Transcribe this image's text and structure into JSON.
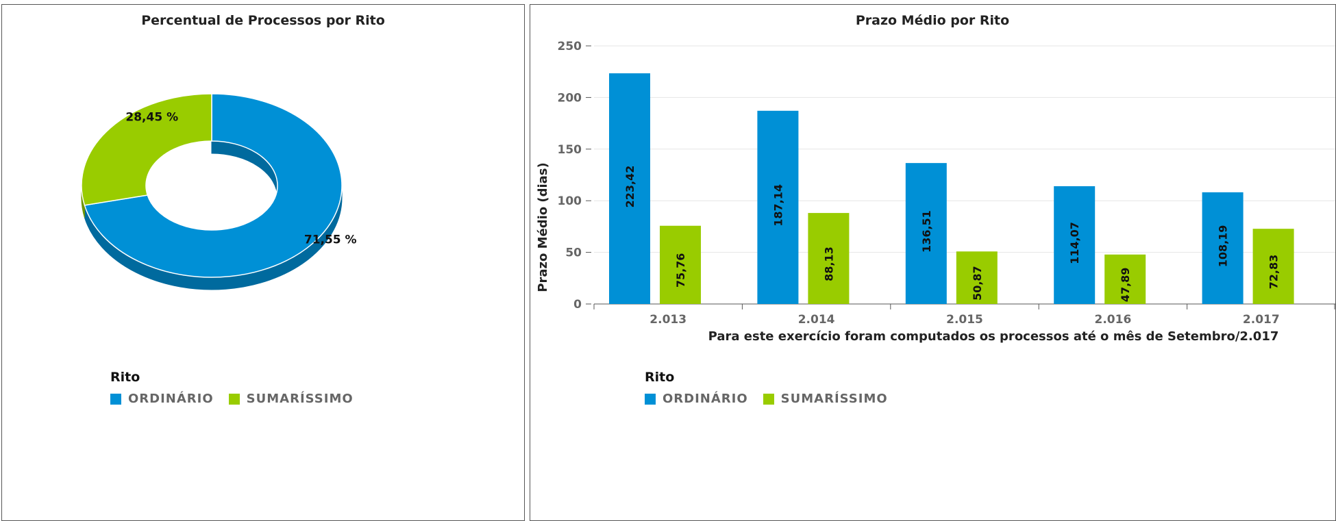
{
  "colors": {
    "ordinario": "#0090d6",
    "sumarissimo": "#99cc00",
    "ordinario_dark": "#006a9e",
    "sumarissimo_dark": "#6e9400"
  },
  "legend": {
    "title": "Rito",
    "items": [
      "ORDINÁRIO",
      "SUMARÍSSIMO"
    ]
  },
  "chart_data": [
    {
      "type": "pie",
      "title": "Percentual de Processos por Rito",
      "slices": [
        {
          "name": "ORDINÁRIO",
          "value": 71.55,
          "label": "71,55 %"
        },
        {
          "name": "SUMARÍSSIMO",
          "value": 28.45,
          "label": "28,45 %"
        }
      ]
    },
    {
      "type": "bar",
      "title": "Prazo Médio por Rito",
      "ylabel": "Prazo Médio (dias)",
      "xlabel": "Para este exercício foram computados os processos até o mês de Setembro/2.017",
      "categories": [
        "2.013",
        "2.014",
        "2.015",
        "2.016",
        "2.017"
      ],
      "ylim": [
        0,
        250
      ],
      "yticks": [
        "0",
        "50",
        "100",
        "150",
        "200",
        "250"
      ],
      "series": [
        {
          "name": "ORDINÁRIO",
          "values": [
            223.42,
            187.14,
            136.51,
            114.07,
            108.19
          ],
          "labels": [
            "223,42",
            "187,14",
            "136,51",
            "114,07",
            "108,19"
          ]
        },
        {
          "name": "SUMARÍSSIMO",
          "values": [
            75.76,
            88.13,
            50.87,
            47.89,
            72.83
          ],
          "labels": [
            "75,76",
            "88,13",
            "50,87",
            "47,89",
            "72,83"
          ]
        }
      ]
    }
  ]
}
